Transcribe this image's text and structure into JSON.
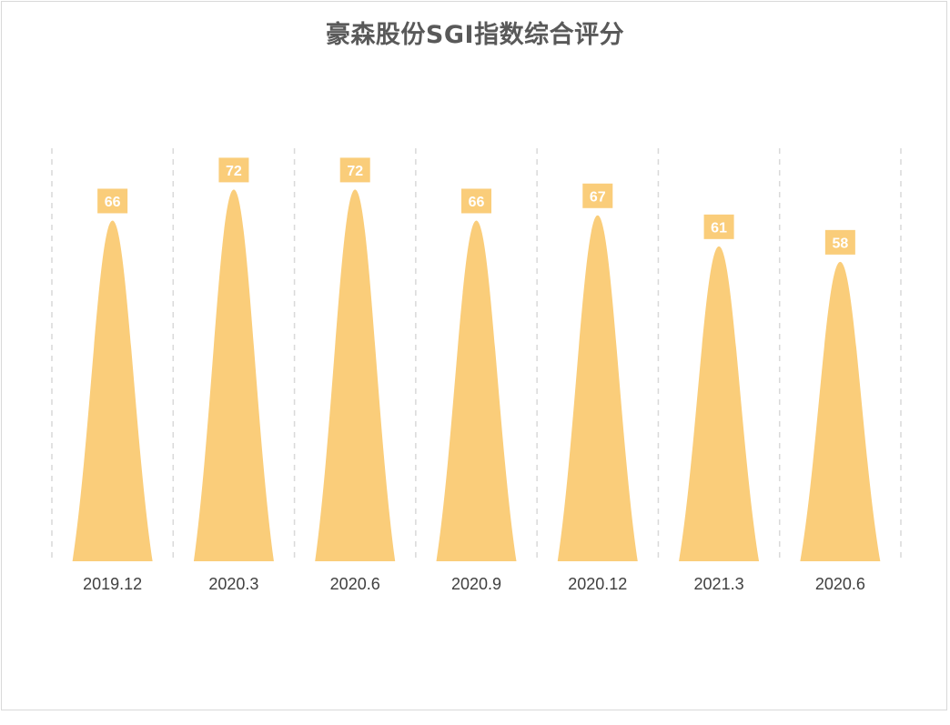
{
  "chart_data": {
    "type": "bar",
    "title": "豪森股份SGI指数综合评分",
    "categories": [
      "2019.12",
      "2020.3",
      "2020.6",
      "2020.9",
      "2020.12",
      "2021.3",
      "2020.6"
    ],
    "values": [
      66,
      72,
      72,
      66,
      67,
      61,
      58
    ],
    "bar_shape": "cone",
    "xlabel": "",
    "ylabel": "",
    "ylim": [
      0,
      80
    ],
    "grid": false,
    "category_separators": "dashed",
    "data_labels": true,
    "legend": "none",
    "colors": {
      "bar": "#FACD7A",
      "label_box": "#FACD7A",
      "label_text": "#FFFFFF",
      "separator": "#D9D9D9",
      "title": "#595959",
      "tick_text": "#404040"
    }
  }
}
